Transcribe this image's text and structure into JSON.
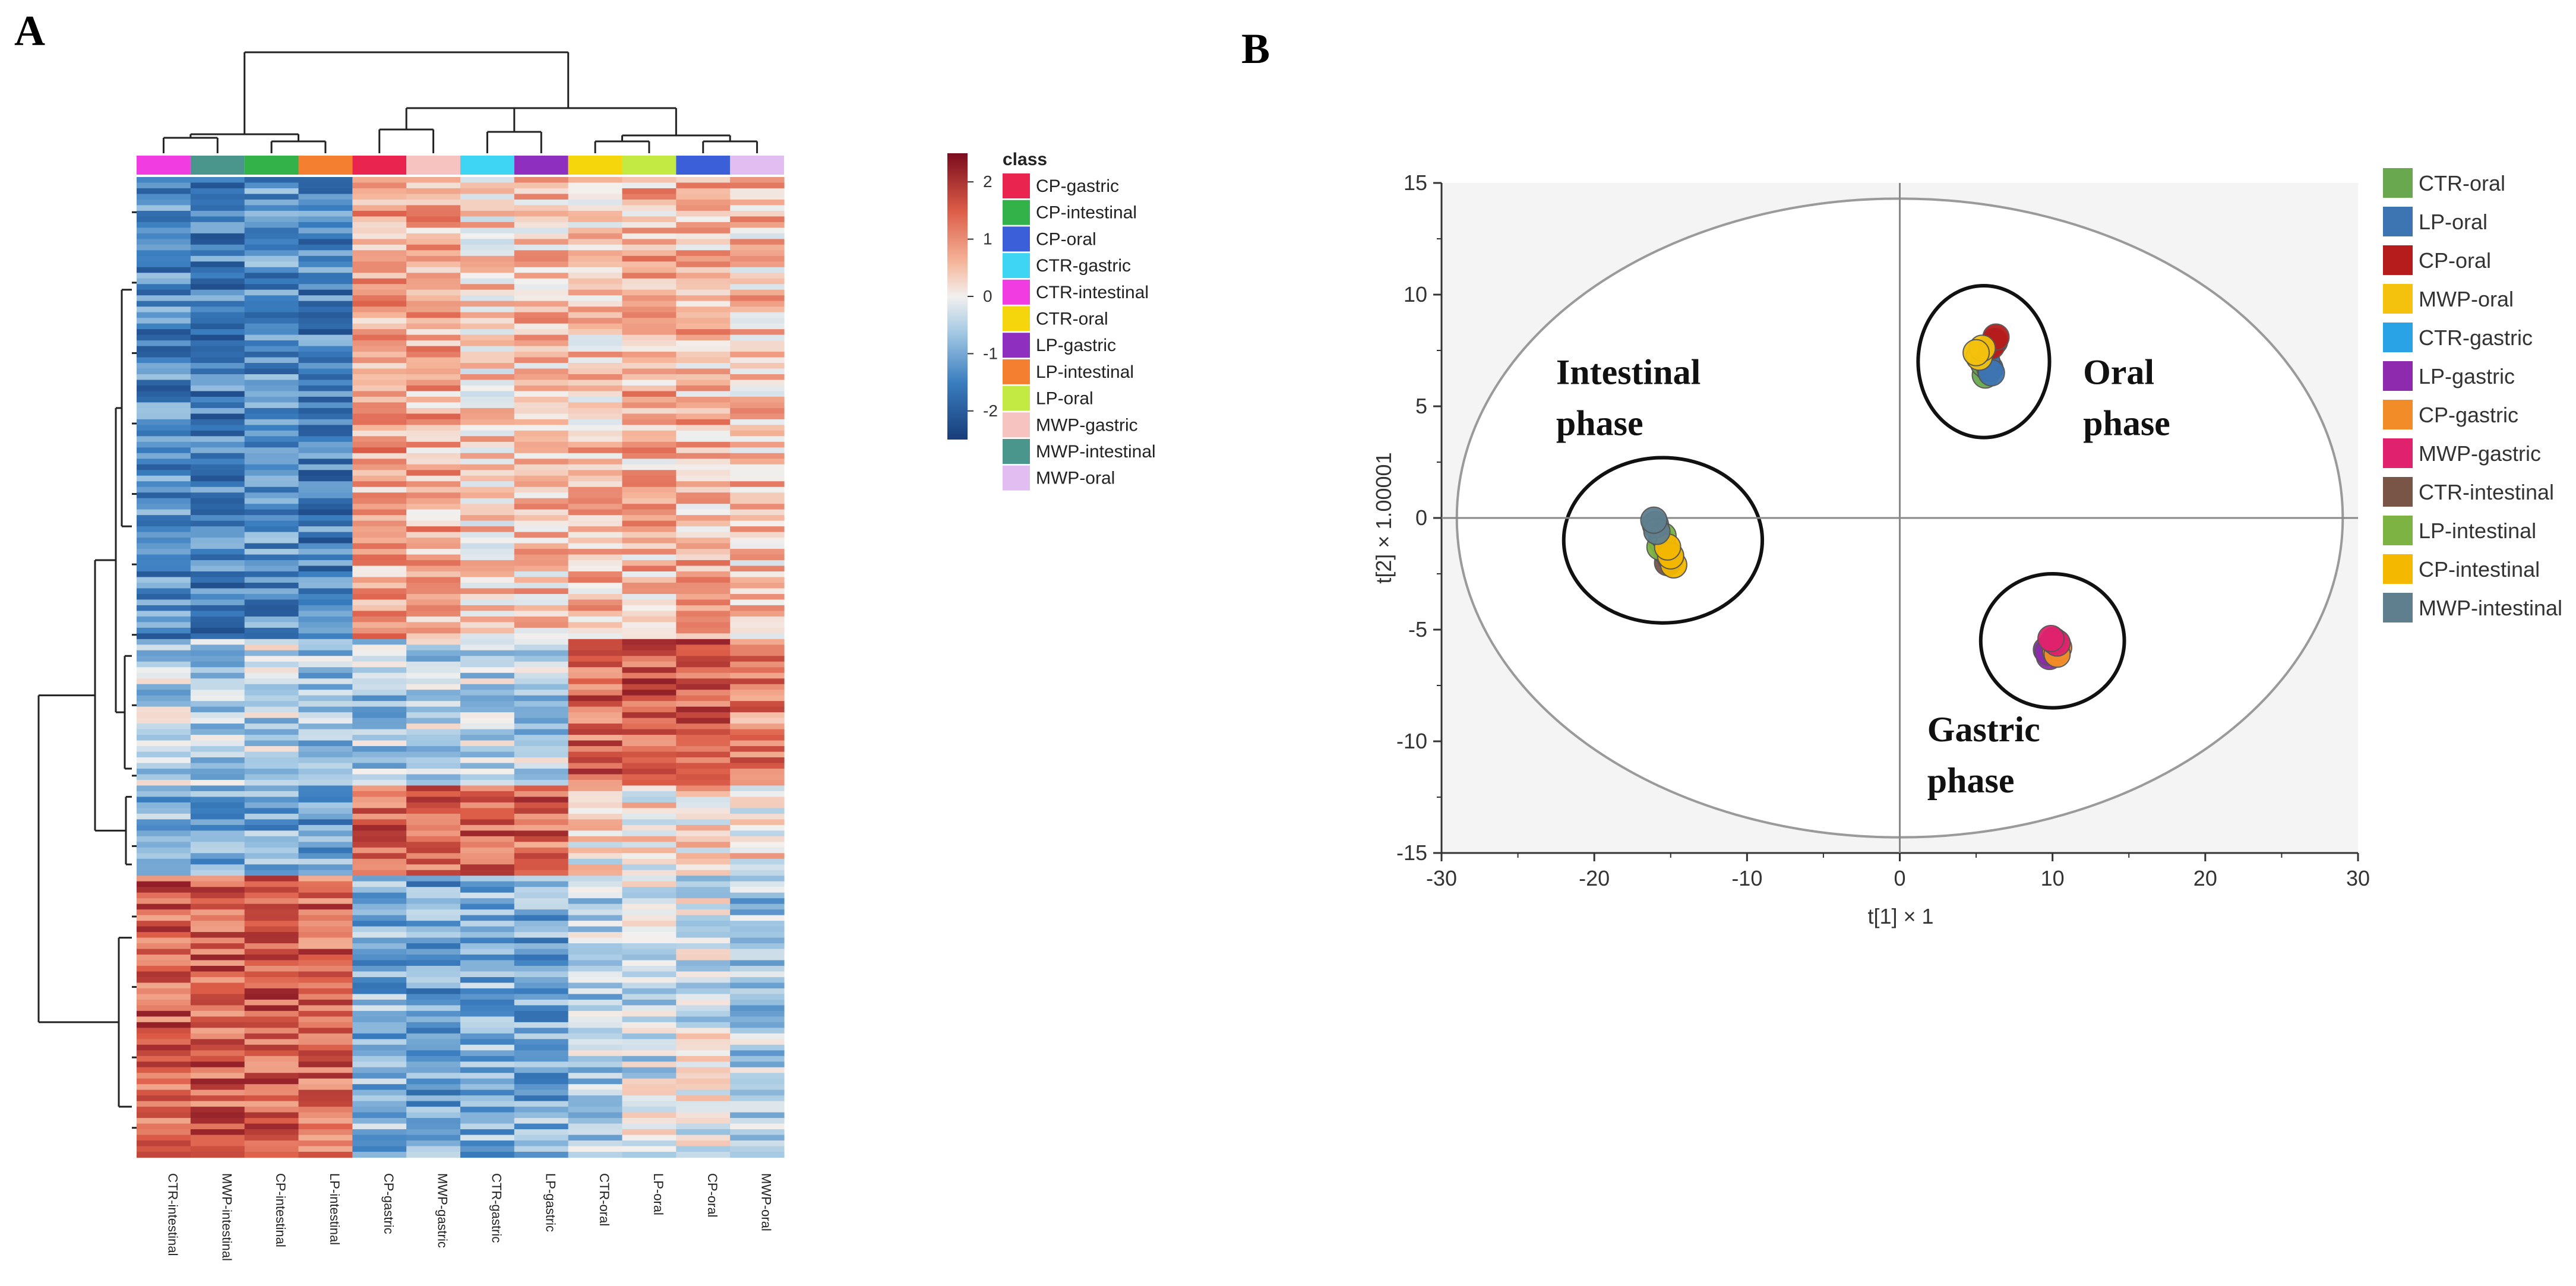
{
  "panels": {
    "a": "A",
    "b": "B"
  },
  "heatmap": {
    "columns": [
      "CTR-intestinal",
      "MWP-intestinal",
      "CP-intestinal",
      "LP-intestinal",
      "CP-gastric",
      "MWP-gastric",
      "CTR-gastric",
      "LP-gastric",
      "CTR-oral",
      "LP-oral",
      "CP-oral",
      "MWP-oral"
    ],
    "column_classes": [
      "CTR-intestinal",
      "MWP-intestinal",
      "CP-intestinal",
      "LP-intestinal",
      "CP-gastric",
      "MWP-gastric",
      "CTR-gastric",
      "LP-gastric",
      "CTR-oral",
      "LP-oral",
      "CP-oral",
      "MWP-oral"
    ],
    "n_rows": 175,
    "row_groups": [
      {
        "rows": 82,
        "pattern": [
          -1.4,
          -1.5,
          -1.3,
          -1.5,
          0.8,
          0.7,
          0.4,
          0.5,
          0.5,
          0.6,
          0.6,
          0.5
        ]
      },
      {
        "rows": 26,
        "pattern": [
          -0.5,
          -0.6,
          -0.4,
          -0.6,
          -0.6,
          -0.4,
          -0.4,
          -0.5,
          1.4,
          1.6,
          1.5,
          1.1
        ]
      },
      {
        "rows": 16,
        "pattern": [
          -1.0,
          -0.9,
          -1.0,
          -1.1,
          1.4,
          1.4,
          1.5,
          1.4,
          0.1,
          0.2,
          0.3,
          0.2
        ]
      },
      {
        "rows": 50,
        "pattern": [
          1.5,
          1.5,
          1.5,
          1.4,
          -0.9,
          -1.1,
          -0.9,
          -1.0,
          -0.5,
          -0.3,
          -0.2,
          -0.6
        ]
      }
    ],
    "colorbar": {
      "ticks": [
        2,
        1,
        0,
        -1,
        -2
      ],
      "range": [
        -2.5,
        2.5
      ]
    },
    "legend": {
      "title": "class",
      "items": [
        {
          "label": "CP-gastric",
          "color": "#e8244f"
        },
        {
          "label": "CP-intestinal",
          "color": "#33b24a"
        },
        {
          "label": "CP-oral",
          "color": "#3a5fd9"
        },
        {
          "label": "CTR-gastric",
          "color": "#3dd5f3"
        },
        {
          "label": "CTR-intestinal",
          "color": "#f03ce0"
        },
        {
          "label": "CTR-oral",
          "color": "#f5d50c"
        },
        {
          "label": "LP-gastric",
          "color": "#8f2fbf"
        },
        {
          "label": "LP-intestinal",
          "color": "#f47f30"
        },
        {
          "label": "LP-oral",
          "color": "#c3ea42"
        },
        {
          "label": "MWP-gastric",
          "color": "#f7c3c1"
        },
        {
          "label": "MWP-intestinal",
          "color": "#4b968c"
        },
        {
          "label": "MWP-oral",
          "color": "#e2bdf2"
        }
      ]
    }
  },
  "chart_data": {
    "type": "scatter",
    "title": "",
    "xlabel": "t[1] × 1",
    "ylabel": "t[2] × 1.00001",
    "xlim": [
      -30,
      30
    ],
    "ylim": [
      -15,
      15
    ],
    "xticks": [
      -30,
      -20,
      -10,
      0,
      10,
      20,
      30
    ],
    "yticks": [
      15,
      10,
      5,
      0,
      -5,
      -10,
      -15
    ],
    "series": [
      {
        "name": "CTR-oral",
        "color": "#6aa84f",
        "x": [
          5.6,
          5.8,
          5.5
        ],
        "y": [
          6.4,
          6.7,
          6.9
        ]
      },
      {
        "name": "LP-oral",
        "color": "#3d75b3",
        "x": [
          5.9,
          5.7,
          6.0
        ],
        "y": [
          6.7,
          7.0,
          6.5
        ]
      },
      {
        "name": "CP-oral",
        "color": "#b71c1c",
        "x": [
          6.2,
          6.0,
          6.3
        ],
        "y": [
          7.9,
          7.7,
          8.1
        ]
      },
      {
        "name": "MWP-oral",
        "color": "#f4c20d",
        "x": [
          5.2,
          5.4,
          5.0
        ],
        "y": [
          7.2,
          7.6,
          7.4
        ]
      },
      {
        "name": "CTR-gastric",
        "color": "#29a3e6",
        "x": [
          10.0,
          9.9,
          10.1
        ],
        "y": [
          -5.7,
          -5.9,
          -5.6
        ]
      },
      {
        "name": "LP-gastric",
        "color": "#8e2aad",
        "x": [
          9.6,
          9.8,
          9.7
        ],
        "y": [
          -5.9,
          -6.2,
          -6.0
        ]
      },
      {
        "name": "CP-gastric",
        "color": "#f28c28",
        "x": [
          10.2,
          10.4,
          10.3
        ],
        "y": [
          -6.0,
          -5.8,
          -6.1
        ]
      },
      {
        "name": "MWP-gastric",
        "color": "#e0226e",
        "x": [
          10.1,
          10.3,
          9.9
        ],
        "y": [
          -5.5,
          -5.6,
          -5.4
        ]
      },
      {
        "name": "CTR-intestinal",
        "color": "#795548",
        "x": [
          -15.2,
          -15.0,
          -15.3
        ],
        "y": [
          -2.0,
          -1.8,
          -1.5
        ]
      },
      {
        "name": "LP-intestinal",
        "color": "#7cb342",
        "x": [
          -15.6,
          -15.7,
          -15.5
        ],
        "y": [
          -1.0,
          -1.3,
          -0.8
        ]
      },
      {
        "name": "CP-intestinal",
        "color": "#f5b800",
        "x": [
          -14.8,
          -15.0,
          -15.2
        ],
        "y": [
          -2.1,
          -1.7,
          -1.3
        ]
      },
      {
        "name": "MWP-intestinal",
        "color": "#5f7f8f",
        "x": [
          -16.0,
          -15.9,
          -16.1
        ],
        "y": [
          -0.3,
          -0.6,
          -0.1
        ]
      }
    ],
    "annotations": [
      {
        "text": [
          "Intestinal",
          "phase"
        ],
        "x": -22.5,
        "y": 6.0
      },
      {
        "text": [
          "Oral",
          "phase"
        ],
        "x": 12.0,
        "y": 6.0
      },
      {
        "text": [
          "Gastric",
          "phase"
        ],
        "x": 1.8,
        "y": -10.0
      }
    ],
    "ellipses": [
      {
        "name": "hotelling-t2",
        "cx": 0,
        "cy": 0,
        "rx": 29.0,
        "ry": 14.3
      },
      {
        "name": "intestinal-cluster",
        "cx": -15.5,
        "cy": -1.0,
        "rx": 6.5,
        "ry": 3.7
      },
      {
        "name": "oral-cluster",
        "cx": 5.5,
        "cy": 7.0,
        "rx": 4.3,
        "ry": 3.4
      },
      {
        "name": "gastric-cluster",
        "cx": 10.0,
        "cy": -5.5,
        "rx": 4.7,
        "ry": 3.0
      }
    ],
    "legend_position": "right"
  }
}
